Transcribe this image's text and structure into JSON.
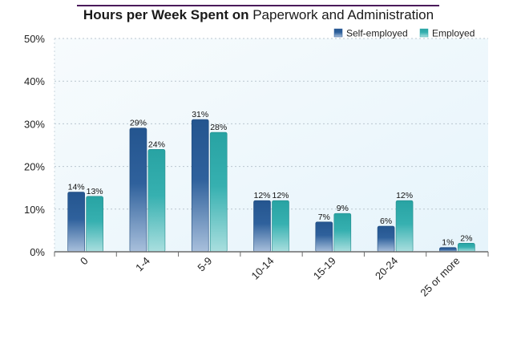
{
  "chart_data": {
    "type": "bar",
    "title_bold": "Hours per Week Spent on",
    "title_rest": "Paperwork and Administration",
    "categories": [
      "0",
      "1-4",
      "5-9",
      "10-14",
      "15-19",
      "20-24",
      "25 or more"
    ],
    "series": [
      {
        "name": "Self-employed",
        "values": [
          14,
          29,
          31,
          12,
          7,
          6,
          1
        ],
        "labels": [
          "14%",
          "29%",
          "31%",
          "12%",
          "7%",
          "6%",
          "1%"
        ],
        "color": "#2e5f9a"
      },
      {
        "name": "Employed",
        "values": [
          13,
          24,
          28,
          12,
          9,
          12,
          2
        ],
        "labels": [
          "13%",
          "24%",
          "28%",
          "12%",
          "9%",
          "12%",
          "2%"
        ],
        "color": "#2ea9a9"
      }
    ],
    "ylim": [
      0,
      50
    ],
    "yticks": [
      0,
      10,
      20,
      30,
      40,
      50
    ],
    "ytick_labels": [
      "0%",
      "10%",
      "20%",
      "30%",
      "40%",
      "50%"
    ],
    "grid": true,
    "legend_position": "top-right"
  }
}
